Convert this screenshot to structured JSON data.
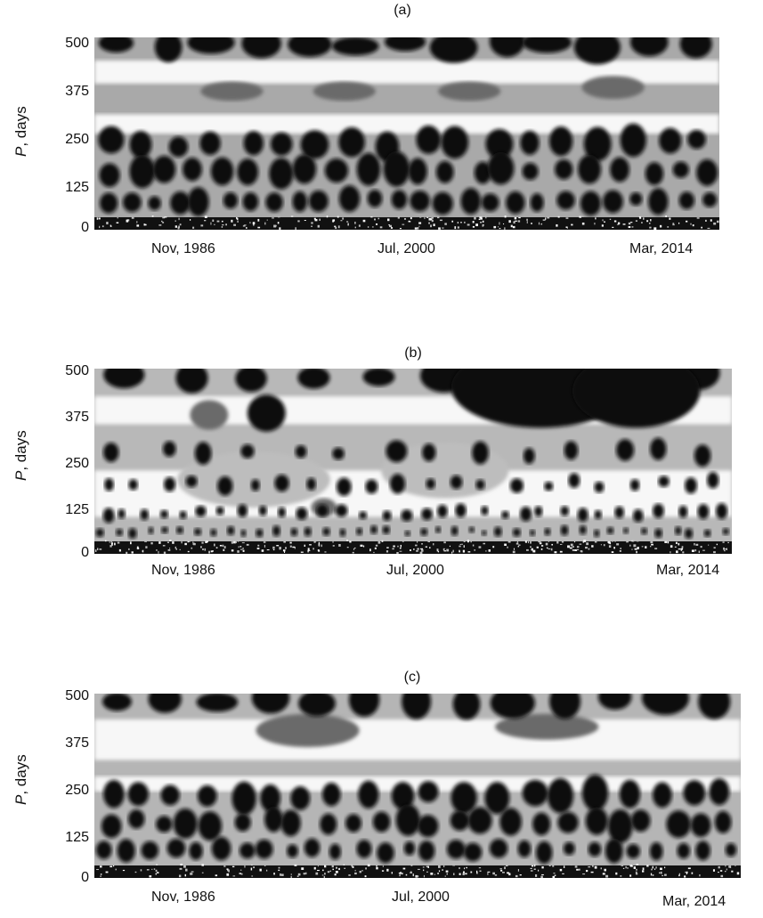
{
  "colors": {
    "dark": "#111111",
    "light": "#f7f7f7",
    "mid": "#bdbdbd",
    "midDark": "#6b6b6b"
  },
  "chart_data": [
    {
      "type": "heatmap",
      "title": "(a)",
      "ylabel_italic": "P",
      "ylabel_rest": ", days",
      "ylim": [
        0,
        500
      ],
      "yticks": [
        "0",
        "125",
        "250",
        "375",
        "500"
      ],
      "xticks": [
        "Nov, 1986",
        "Jul, 2000",
        "Mar, 2014"
      ],
      "grayscale": true
    },
    {
      "type": "heatmap",
      "title": "(b)",
      "ylabel_italic": "P",
      "ylabel_rest": ", days",
      "ylim": [
        0,
        500
      ],
      "yticks": [
        "0",
        "125",
        "250",
        "375",
        "500"
      ],
      "xticks": [
        "Nov, 1986",
        "Jul, 2000",
        "Mar, 2014"
      ],
      "grayscale": true
    },
    {
      "type": "heatmap",
      "title": "(c)",
      "ylabel_italic": "P",
      "ylabel_rest": ", days",
      "ylim": [
        0,
        500
      ],
      "yticks": [
        "0",
        "125",
        "250",
        "375",
        "500"
      ],
      "xticks": [
        "Nov, 1986",
        "Jul, 2000",
        "Mar, 2014"
      ],
      "grayscale": true
    }
  ]
}
